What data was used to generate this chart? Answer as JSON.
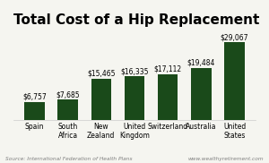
{
  "title": "Total Cost of a Hip Replacement",
  "categories": [
    "Spain",
    "South\nAfrica",
    "New\nZealand",
    "United\nKingdom",
    "Switzerland",
    "Australia",
    "United\nStates"
  ],
  "values": [
    6757,
    7685,
    15465,
    16335,
    17112,
    19484,
    29067
  ],
  "labels": [
    "$6,757",
    "$7,685",
    "$15,465",
    "$16,335",
    "$17,112",
    "$19,484",
    "$29,067"
  ],
  "bar_color": "#1a4a1a",
  "background_color": "#f5f5f0",
  "title_fontsize": 11,
  "label_fontsize": 5.5,
  "tick_fontsize": 5.5,
  "source_text": "Source: International Federation of Health Plans",
  "source_right": "www.wealthyretirement.com",
  "ylim": [
    0,
    33000
  ]
}
